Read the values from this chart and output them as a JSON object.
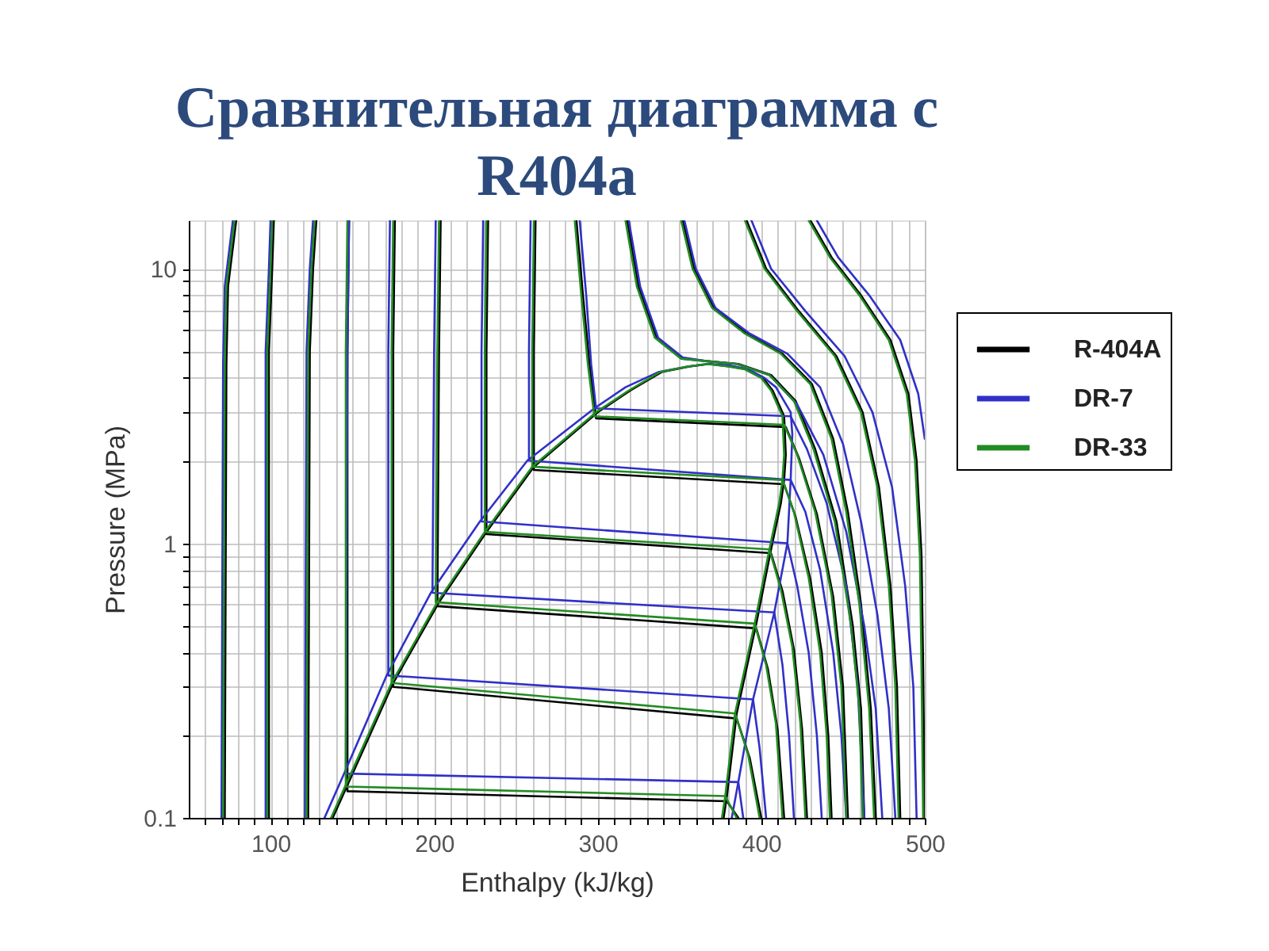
{
  "chart_data": {
    "type": "line",
    "title": "Сравнительная диаграмма с R404a",
    "xlabel": "Enthalpy (kJ/kg)",
    "ylabel": "Pressure (MPa)",
    "xlim": [
      50,
      500
    ],
    "ylim": [
      0.1,
      15
    ],
    "log": "y",
    "grid": true,
    "legend": "right",
    "xticks": [
      {
        "value": 60,
        "label": null
      },
      {
        "value": 70,
        "label": null
      },
      {
        "value": 80,
        "label": null
      },
      {
        "value": 90,
        "label": null
      },
      100,
      {
        "value": 110,
        "label": null
      },
      {
        "value": 120,
        "label": null
      },
      {
        "value": 130,
        "label": null
      },
      {
        "value": 140,
        "label": null
      },
      {
        "value": 150,
        "label": null
      },
      {
        "value": 160,
        "label": null
      },
      {
        "value": 170,
        "label": null
      },
      {
        "value": 180,
        "label": null
      },
      {
        "value": 190,
        "label": null
      },
      200,
      {
        "value": 210,
        "label": null
      },
      {
        "value": 220,
        "label": null
      },
      {
        "value": 230,
        "label": null
      },
      {
        "value": 240,
        "label": null
      },
      {
        "value": 250,
        "label": null
      },
      {
        "value": 260,
        "label": null
      },
      {
        "value": 270,
        "label": null
      },
      {
        "value": 280,
        "label": null
      },
      {
        "value": 290,
        "label": null
      },
      300,
      {
        "value": 310,
        "label": null
      },
      {
        "value": 320,
        "label": null
      },
      {
        "value": 330,
        "label": null
      },
      {
        "value": 340,
        "label": null
      },
      {
        "value": 350,
        "label": null
      },
      {
        "value": 360,
        "label": null
      },
      {
        "value": 370,
        "label": null
      },
      {
        "value": 380,
        "label": null
      },
      {
        "value": 390,
        "label": null
      },
      400,
      {
        "value": 410,
        "label": null
      },
      {
        "value": 420,
        "label": null
      },
      {
        "value": 430,
        "label": null
      },
      {
        "value": 440,
        "label": null
      },
      {
        "value": 450,
        "label": null
      },
      {
        "value": 460,
        "label": null
      },
      {
        "value": 470,
        "label": null
      },
      {
        "value": 480,
        "label": null
      },
      {
        "value": 490,
        "label": null
      },
      500
    ],
    "yticks": [
      0.1,
      {
        "value": 0.2,
        "label": null
      },
      {
        "value": 0.3,
        "label": null
      },
      {
        "value": 0.4,
        "label": null
      },
      {
        "value": 0.5,
        "label": null
      },
      {
        "value": 0.6,
        "label": null
      },
      {
        "value": 0.7,
        "label": null
      },
      {
        "value": 0.8,
        "label": null
      },
      {
        "value": 0.9,
        "label": null
      },
      1,
      {
        "value": 2,
        "label": null
      },
      {
        "value": 3,
        "label": null
      },
      {
        "value": 4,
        "label": null
      },
      {
        "value": 5,
        "label": null
      },
      {
        "value": 6,
        "label": null
      },
      {
        "value": 7,
        "label": null
      },
      {
        "value": 8,
        "label": null
      },
      {
        "value": 9,
        "label": null
      },
      10
    ],
    "series": [
      {
        "name": "R-404A",
        "color": "#000000",
        "x": [
          138,
          149,
          175,
          203,
          232,
          261,
          300,
          320,
          339,
          356,
          368,
          381,
          391,
          401,
          407,
          414,
          415,
          414,
          412,
          406,
          397,
          385,
          379,
          377
        ],
        "values": [
          0.1,
          0.14,
          0.31,
          0.61,
          1.1,
          1.9,
          3.0,
          3.6,
          4.2,
          4.4,
          4.5,
          4.4,
          4.3,
          4.0,
          3.6,
          2.9,
          2.1,
          1.7,
          1.4,
          0.95,
          0.51,
          0.24,
          0.12,
          0.1
        ]
      },
      {
        "color": "#000000",
        "x": [
          79,
          74,
          73,
          72
        ],
        "values": [
          15,
          8.6,
          4.5,
          0.1
        ]
      },
      {
        "color": "#000000",
        "x": [
          102,
          101,
          99,
          99
        ],
        "values": [
          15,
          10,
          5,
          0.1
        ]
      },
      {
        "color": "#000000",
        "x": [
          128,
          126,
          124,
          123
        ],
        "values": [
          15,
          10,
          5,
          0.1
        ]
      },
      {
        "color": "#000000",
        "x": [
          148,
          147,
          147,
          379,
          386
        ],
        "values": [
          15,
          5,
          0.125,
          0.115,
          0.1
        ]
      },
      {
        "color": "#000000",
        "x": [
          176,
          175,
          175,
          385,
          393,
          400
        ],
        "values": [
          15,
          5,
          0.3,
          0.23,
          0.165,
          0.1
        ]
      },
      {
        "color": "#000000",
        "x": [
          204,
          203,
          202,
          397,
          404,
          410,
          414
        ],
        "values": [
          15,
          5,
          0.59,
          0.49,
          0.35,
          0.21,
          0.1
        ]
      },
      {
        "color": "#000000",
        "x": [
          233,
          232,
          232,
          406,
          413,
          420,
          425,
          428
        ],
        "values": [
          15,
          5,
          1.08,
          0.92,
          0.67,
          0.41,
          0.21,
          0.1
        ]
      },
      {
        "color": "#000000",
        "x": [
          262,
          261,
          261,
          414,
          421,
          430,
          437,
          441,
          443
        ],
        "values": [
          15,
          5,
          1.85,
          1.64,
          1.25,
          0.74,
          0.4,
          0.2,
          0.1
        ]
      },
      {
        "color": "#000000",
        "x": [
          287,
          291,
          295,
          299,
          415,
          423,
          434,
          444,
          450,
          453
        ],
        "values": [
          15,
          8,
          4.5,
          2.85,
          2.65,
          2.05,
          1.28,
          0.64,
          0.3,
          0.1
        ]
      },
      {
        "color": "#000000",
        "x": [
          318,
          325,
          336,
          352,
          368,
          386,
          406,
          421,
          433,
          446,
          456,
          461,
          463
        ],
        "values": [
          15,
          8.6,
          5.6,
          4.7,
          4.6,
          4.5,
          4.1,
          3.3,
          2.2,
          1.2,
          0.5,
          0.25,
          0.1
        ]
      },
      {
        "color": "#000000",
        "x": [
          352,
          359,
          371,
          391,
          413,
          431,
          444,
          453,
          461,
          467,
          470
        ],
        "values": [
          15,
          10,
          7.2,
          5.8,
          4.9,
          3.8,
          2.4,
          1.3,
          0.6,
          0.25,
          0.1
        ]
      },
      {
        "color": "#000000",
        "x": [
          391,
          403,
          423,
          446,
          462,
          472,
          479,
          483,
          485
        ],
        "values": [
          15,
          10,
          7,
          4.8,
          3,
          1.6,
          0.7,
          0.3,
          0.1
        ]
      },
      {
        "color": "#000000",
        "x": [
          430,
          443,
          461,
          479,
          490,
          495,
          498,
          499,
          500
        ],
        "values": [
          15,
          11,
          8,
          5.5,
          3.5,
          2,
          0.9,
          0.35,
          0.1
        ]
      },
      {
        "name": "DR-7",
        "color": "#3030c8",
        "x": [
          133,
          145,
          171,
          198,
          228,
          257,
          298,
          317,
          337,
          355,
          367,
          380,
          392,
          402,
          409,
          418,
          419,
          418,
          416,
          408,
          395,
          386,
          382
        ],
        "values": [
          0.1,
          0.145,
          0.33,
          0.66,
          1.2,
          2.0,
          3.1,
          3.7,
          4.2,
          4.4,
          4.5,
          4.45,
          4.3,
          4.0,
          3.7,
          3.0,
          2.5,
          1.7,
          1.0,
          0.56,
          0.27,
          0.135,
          0.1
        ]
      },
      {
        "color": "#3030c8",
        "x": [
          77,
          72,
          71,
          70
        ],
        "values": [
          15,
          8.6,
          4.5,
          0.1
        ]
      },
      {
        "color": "#3030c8",
        "x": [
          100,
          99,
          97,
          97
        ],
        "values": [
          15,
          10,
          5,
          0.1
        ]
      },
      {
        "color": "#3030c8",
        "x": [
          126,
          124,
          122,
          121
        ],
        "values": [
          15,
          10,
          5,
          0.1
        ]
      },
      {
        "color": "#3030c8",
        "x": [
          148,
          147,
          146,
          386,
          389
        ],
        "values": [
          15,
          5,
          0.145,
          0.135,
          0.1
        ]
      },
      {
        "color": "#3030c8",
        "x": [
          173,
          172,
          172,
          395,
          399,
          403
        ],
        "values": [
          15,
          5,
          0.33,
          0.27,
          0.18,
          0.1
        ]
      },
      {
        "color": "#3030c8",
        "x": [
          201,
          200,
          199,
          408,
          413,
          417,
          420
        ],
        "values": [
          15,
          5,
          0.66,
          0.56,
          0.36,
          0.2,
          0.1
        ]
      },
      {
        "color": "#3030c8",
        "x": [
          230,
          229,
          229,
          416,
          422,
          429,
          434,
          437
        ],
        "values": [
          15,
          5,
          1.2,
          1.0,
          0.7,
          0.4,
          0.2,
          0.1
        ]
      },
      {
        "color": "#3030c8",
        "x": [
          259,
          258,
          258,
          418,
          427,
          436,
          444,
          449,
          452
        ],
        "values": [
          15,
          5,
          2.0,
          1.7,
          1.3,
          0.8,
          0.4,
          0.2,
          0.1
        ]
      },
      {
        "color": "#3030c8",
        "x": [
          289,
          293,
          296,
          299,
          418,
          428,
          440,
          452,
          459,
          463
        ],
        "values": [
          15,
          8,
          4.5,
          3.1,
          2.9,
          2.2,
          1.4,
          0.7,
          0.3,
          0.1
        ]
      },
      {
        "color": "#3030c8",
        "x": [
          319,
          326,
          337,
          352,
          367,
          385,
          405,
          422,
          438,
          452,
          463,
          470,
          474
        ],
        "values": [
          15,
          8.6,
          5.6,
          4.75,
          4.6,
          4.5,
          4.1,
          3.2,
          2.1,
          1.1,
          0.5,
          0.25,
          0.1
        ]
      },
      {
        "color": "#3030c8",
        "x": [
          353,
          360,
          372,
          393,
          416,
          436,
          450,
          461,
          471,
          478,
          482
        ],
        "values": [
          15,
          10,
          7.2,
          5.8,
          4.9,
          3.7,
          2.3,
          1.2,
          0.55,
          0.25,
          0.1
        ]
      },
      {
        "color": "#3030c8",
        "x": [
          394,
          406,
          427,
          451,
          468,
          480,
          488,
          493,
          495
        ],
        "values": [
          15,
          10,
          7,
          4.8,
          3,
          1.6,
          0.7,
          0.3,
          0.1
        ]
      },
      {
        "color": "#3030c8",
        "x": [
          434,
          447,
          466,
          485,
          496,
          500
        ],
        "values": [
          15,
          11,
          8,
          5.5,
          3.5,
          2.4
        ]
      },
      {
        "name": "DR-33",
        "color": "#228b22",
        "x": [
          137,
          148,
          174,
          202,
          231,
          260,
          299,
          319,
          338,
          355,
          367,
          380,
          390,
          400,
          406,
          413,
          414,
          413,
          411,
          405,
          396,
          384,
          378,
          376
        ],
        "values": [
          0.1,
          0.14,
          0.31,
          0.61,
          1.1,
          1.9,
          3.0,
          3.6,
          4.2,
          4.4,
          4.5,
          4.4,
          4.3,
          4.0,
          3.6,
          2.9,
          2.1,
          1.7,
          1.4,
          0.95,
          0.51,
          0.24,
          0.12,
          0.1
        ]
      },
      {
        "color": "#228b22",
        "x": [
          78,
          73,
          72,
          71
        ],
        "values": [
          15,
          8.6,
          4.5,
          0.1
        ]
      },
      {
        "color": "#228b22",
        "x": [
          101,
          100,
          98,
          98
        ],
        "values": [
          15,
          10,
          5,
          0.1
        ]
      },
      {
        "color": "#228b22",
        "x": [
          127,
          125,
          123,
          122
        ],
        "values": [
          15,
          10,
          5,
          0.1
        ]
      },
      {
        "color": "#228b22",
        "x": [
          147,
          146,
          146,
          378,
          385
        ],
        "values": [
          15,
          5,
          0.13,
          0.12,
          0.1
        ]
      },
      {
        "color": "#228b22",
        "x": [
          175,
          174,
          174,
          384,
          392,
          399
        ],
        "values": [
          15,
          5,
          0.31,
          0.24,
          0.17,
          0.1
        ]
      },
      {
        "color": "#228b22",
        "x": [
          203,
          202,
          201,
          396,
          403,
          409,
          413
        ],
        "values": [
          15,
          5,
          0.61,
          0.51,
          0.36,
          0.22,
          0.1
        ]
      },
      {
        "color": "#228b22",
        "x": [
          232,
          231,
          231,
          405,
          412,
          419,
          424,
          427
        ],
        "values": [
          15,
          5,
          1.1,
          0.95,
          0.68,
          0.42,
          0.22,
          0.1
        ]
      },
      {
        "color": "#228b22",
        "x": [
          261,
          260,
          260,
          413,
          420,
          429,
          436,
          440,
          442
        ],
        "values": [
          15,
          5,
          1.9,
          1.7,
          1.3,
          0.75,
          0.4,
          0.2,
          0.1
        ]
      },
      {
        "color": "#228b22",
        "x": [
          286,
          290,
          294,
          298,
          414,
          422,
          433,
          443,
          449,
          452
        ],
        "values": [
          15,
          8,
          4.5,
          2.9,
          2.7,
          2.1,
          1.3,
          0.65,
          0.3,
          0.1
        ]
      },
      {
        "color": "#228b22",
        "x": [
          317,
          324,
          335,
          351,
          367,
          385,
          405,
          420,
          432,
          445,
          455,
          460,
          462
        ],
        "values": [
          15,
          8.6,
          5.6,
          4.7,
          4.6,
          4.5,
          4.1,
          3.3,
          2.2,
          1.2,
          0.5,
          0.25,
          0.1
        ]
      },
      {
        "color": "#228b22",
        "x": [
          351,
          358,
          370,
          390,
          412,
          430,
          443,
          452,
          460,
          466,
          469
        ],
        "values": [
          15,
          10,
          7.2,
          5.8,
          4.9,
          3.8,
          2.4,
          1.3,
          0.6,
          0.25,
          0.1
        ]
      },
      {
        "color": "#228b22",
        "x": [
          390,
          402,
          422,
          445,
          461,
          471,
          478,
          482,
          484
        ],
        "values": [
          15,
          10,
          7,
          4.8,
          3,
          1.6,
          0.7,
          0.3,
          0.1
        ]
      },
      {
        "color": "#228b22",
        "x": [
          429,
          442,
          460,
          478,
          489,
          494,
          497,
          498,
          499
        ],
        "values": [
          15,
          11,
          8,
          5.5,
          3.5,
          2,
          0.9,
          0.35,
          0.1
        ]
      }
    ]
  }
}
